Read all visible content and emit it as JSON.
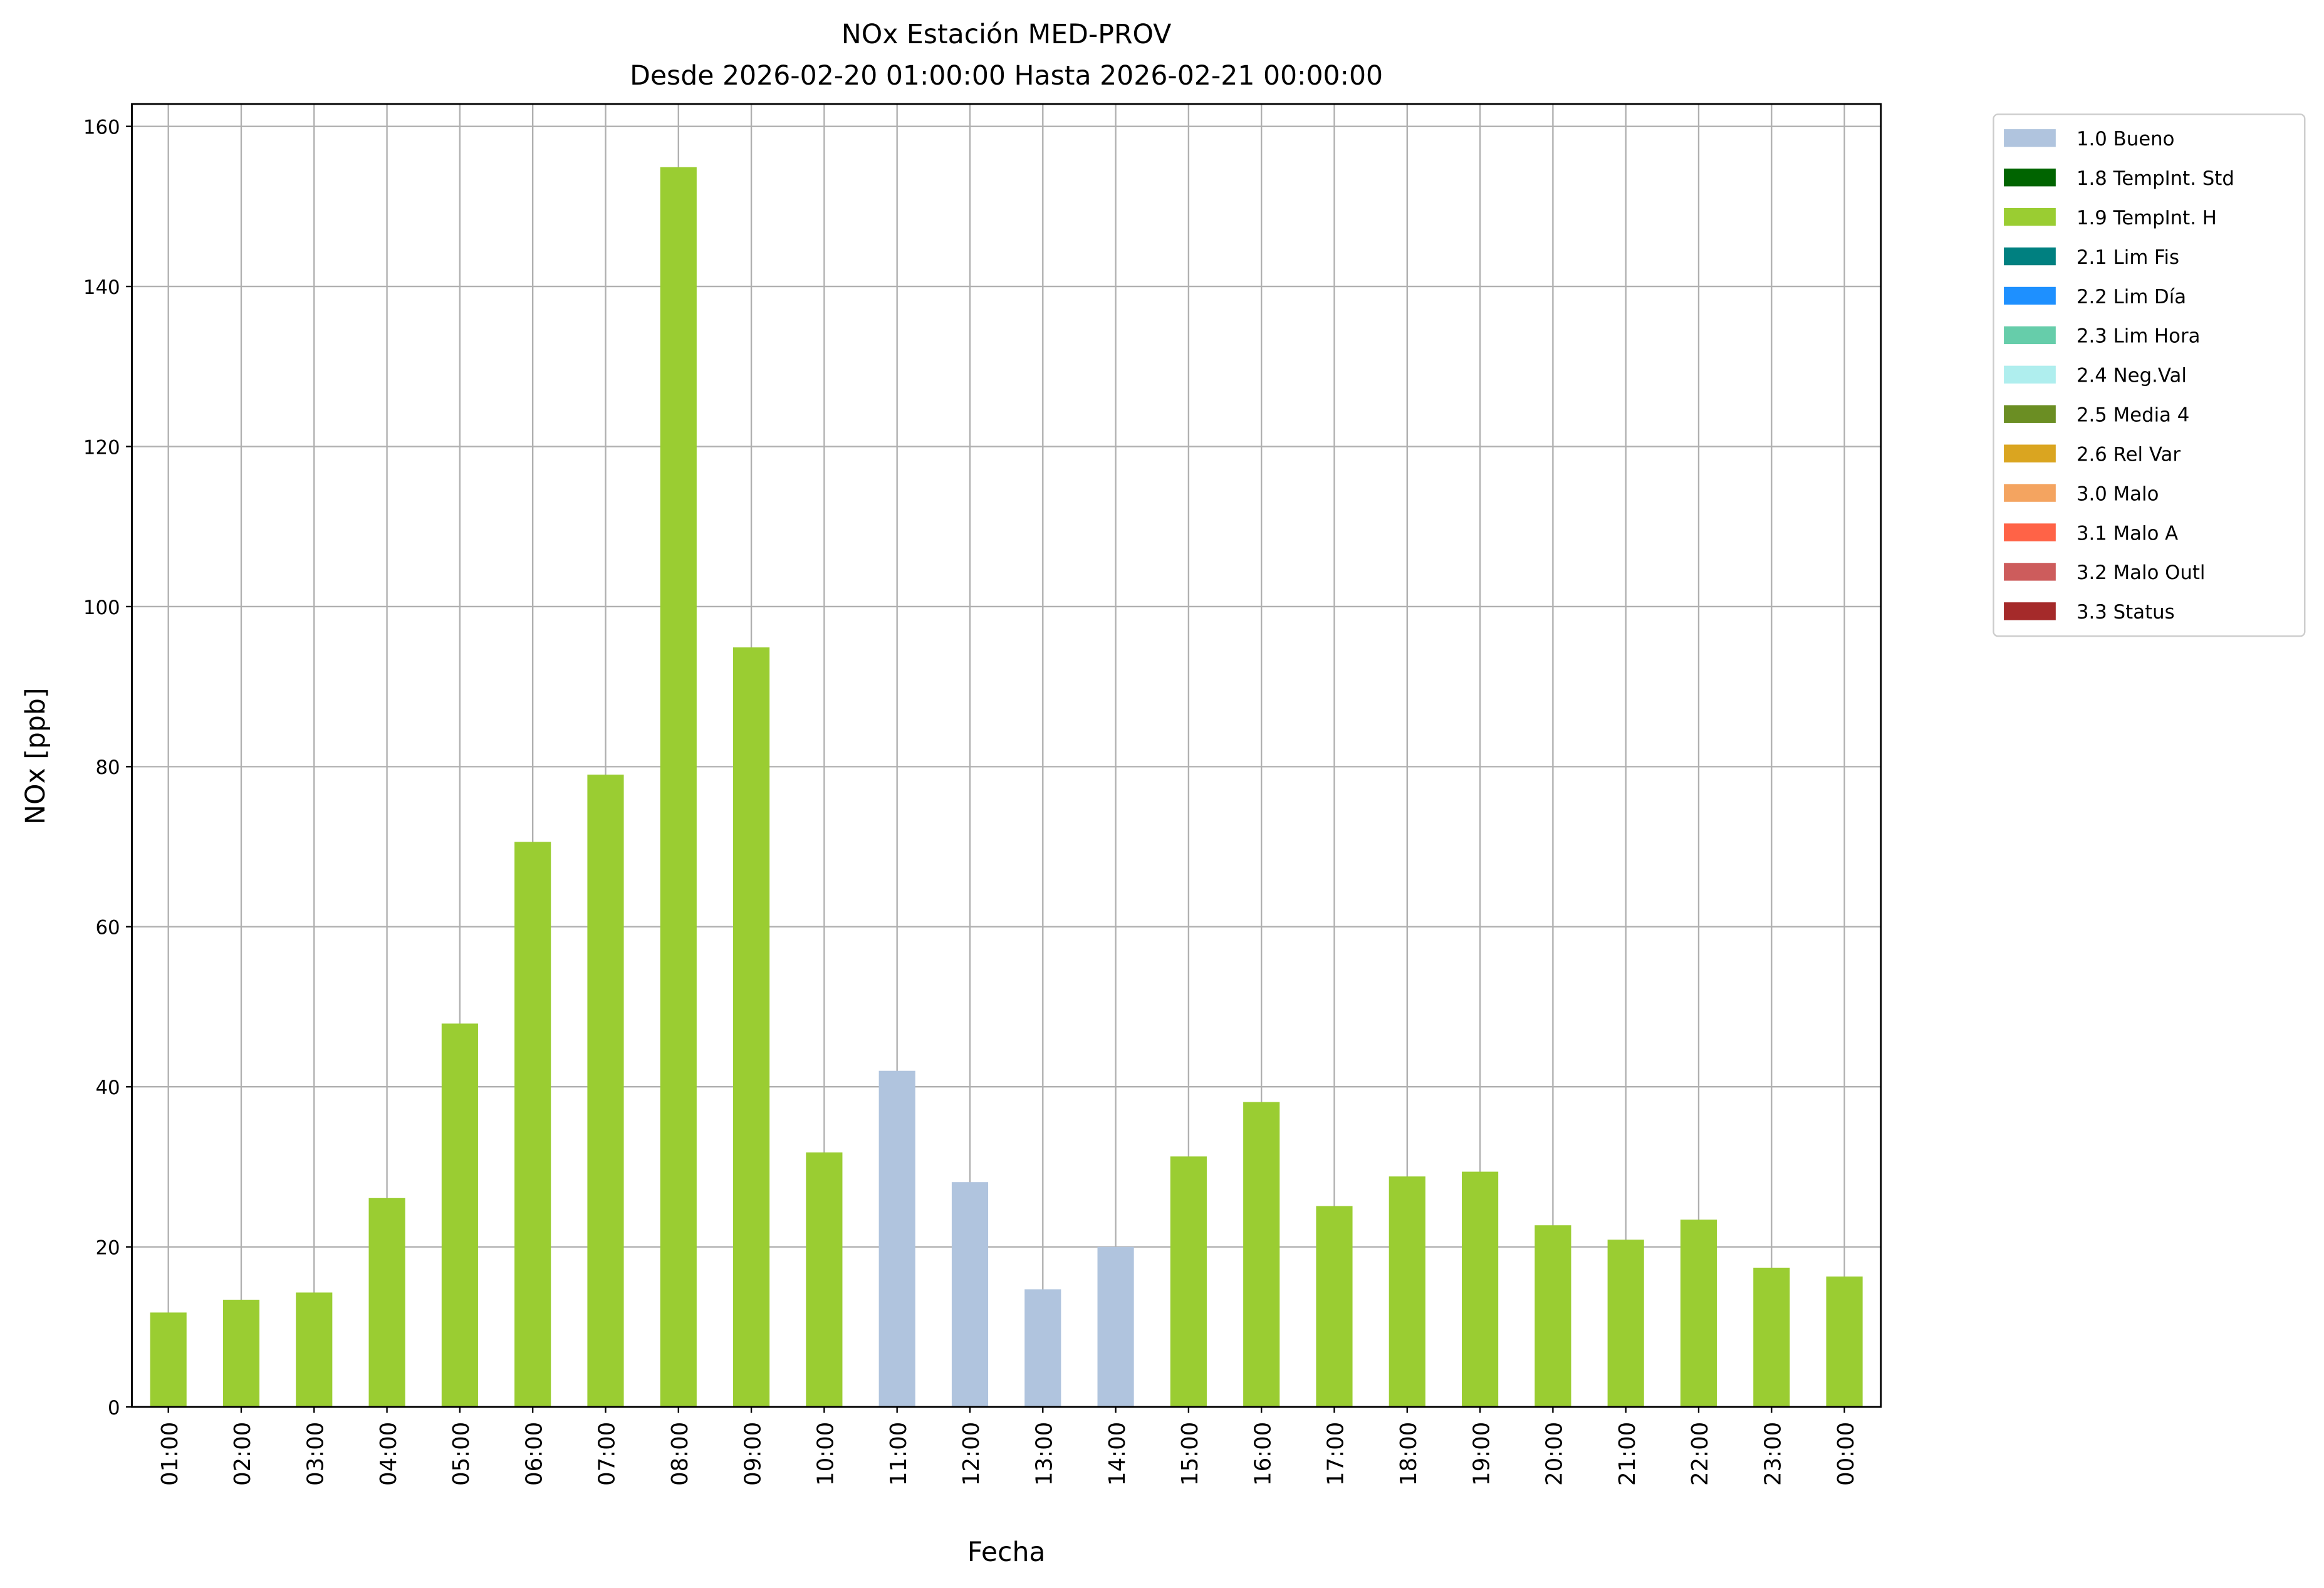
{
  "chart_data": {
    "type": "bar",
    "stacked": true,
    "title": "NOx Estación MED-PROV",
    "subtitle": "Desde 2026-02-20 01:00:00 Hasta 2026-02-21 00:00:00",
    "x_label": "Fecha",
    "y_label": "NOx [ppb]",
    "categories": [
      "01:00",
      "02:00",
      "03:00",
      "04:00",
      "05:00",
      "06:00",
      "07:00",
      "08:00",
      "09:00",
      "10:00",
      "11:00",
      "12:00",
      "13:00",
      "14:00",
      "15:00",
      "16:00",
      "17:00",
      "18:00",
      "19:00",
      "20:00",
      "21:00",
      "22:00",
      "23:00",
      "00:00"
    ],
    "series": [
      {
        "name": "1.0 Bueno",
        "color": "#b0c4de",
        "values": [
          null,
          null,
          null,
          null,
          null,
          null,
          null,
          null,
          null,
          null,
          42,
          28.1,
          14.7,
          20,
          null,
          null,
          null,
          null,
          null,
          null,
          null,
          null,
          null,
          null
        ]
      },
      {
        "name": "1.8 TempInt. Std",
        "color": "#006400",
        "values": [
          null,
          null,
          null,
          null,
          null,
          null,
          null,
          null,
          null,
          null,
          null,
          null,
          null,
          null,
          null,
          null,
          null,
          null,
          null,
          null,
          null,
          null,
          null,
          null
        ]
      },
      {
        "name": "1.9 TempInt. H",
        "color": "#9acd32",
        "values": [
          11.8,
          13.4,
          14.3,
          26.1,
          47.9,
          70.6,
          79,
          154.9,
          94.9,
          31.8,
          null,
          null,
          null,
          null,
          31.3,
          38.1,
          25.1,
          28.8,
          29.4,
          22.7,
          20.9,
          23.4,
          17.4,
          16.3
        ]
      },
      {
        "name": "2.1 Lim Fis",
        "color": "#008080",
        "values": [
          null,
          null,
          null,
          null,
          null,
          null,
          null,
          null,
          null,
          null,
          null,
          null,
          null,
          null,
          null,
          null,
          null,
          null,
          null,
          null,
          null,
          null,
          null,
          null
        ]
      },
      {
        "name": "2.2 Lim Día",
        "color": "#1e90ff",
        "values": [
          null,
          null,
          null,
          null,
          null,
          null,
          null,
          null,
          null,
          null,
          null,
          null,
          null,
          null,
          null,
          null,
          null,
          null,
          null,
          null,
          null,
          null,
          null,
          null
        ]
      },
      {
        "name": "2.3 Lim Hora",
        "color": "#66cdaa",
        "values": [
          null,
          null,
          null,
          null,
          null,
          null,
          null,
          null,
          null,
          null,
          null,
          null,
          null,
          null,
          null,
          null,
          null,
          null,
          null,
          null,
          null,
          null,
          null,
          null
        ]
      },
      {
        "name": "2.4 Neg.Val",
        "color": "#afeeee",
        "values": [
          null,
          null,
          null,
          null,
          null,
          null,
          null,
          null,
          null,
          null,
          null,
          null,
          null,
          null,
          null,
          null,
          null,
          null,
          null,
          null,
          null,
          null,
          null,
          null
        ]
      },
      {
        "name": "2.5 Media 4",
        "color": "#6b8e23",
        "values": [
          null,
          null,
          null,
          null,
          null,
          null,
          null,
          null,
          null,
          null,
          null,
          null,
          null,
          null,
          null,
          null,
          null,
          null,
          null,
          null,
          null,
          null,
          null,
          null
        ]
      },
      {
        "name": "2.6 Rel Var",
        "color": "#daa520",
        "values": [
          null,
          null,
          null,
          null,
          null,
          null,
          null,
          null,
          null,
          null,
          null,
          null,
          null,
          null,
          null,
          null,
          null,
          null,
          null,
          null,
          null,
          null,
          null,
          null
        ]
      },
      {
        "name": "3.0 Malo",
        "color": "#f4a460",
        "values": [
          null,
          null,
          null,
          null,
          null,
          null,
          null,
          null,
          null,
          null,
          null,
          null,
          null,
          null,
          null,
          null,
          null,
          null,
          null,
          null,
          null,
          null,
          null,
          null
        ]
      },
      {
        "name": "3.1 Malo A",
        "color": "#ff6347",
        "values": [
          null,
          null,
          null,
          null,
          null,
          null,
          null,
          null,
          null,
          null,
          null,
          null,
          null,
          null,
          null,
          null,
          null,
          null,
          null,
          null,
          null,
          null,
          null,
          null
        ]
      },
      {
        "name": "3.2 Malo Outl",
        "color": "#cd5c5c",
        "values": [
          null,
          null,
          null,
          null,
          null,
          null,
          null,
          null,
          null,
          null,
          null,
          null,
          null,
          null,
          null,
          null,
          null,
          null,
          null,
          null,
          null,
          null,
          null,
          null
        ]
      },
      {
        "name": "3.3 Status",
        "color": "#a52a2a",
        "values": [
          null,
          null,
          null,
          null,
          null,
          null,
          null,
          null,
          null,
          null,
          null,
          null,
          null,
          null,
          null,
          null,
          null,
          null,
          null,
          null,
          null,
          null,
          null,
          null
        ]
      }
    ],
    "ylim": [
      0,
      162.8
    ],
    "yticks": [
      0,
      20,
      40,
      60,
      80,
      100,
      120,
      140,
      160
    ],
    "grid": true,
    "legend": "outside-upper-right"
  }
}
